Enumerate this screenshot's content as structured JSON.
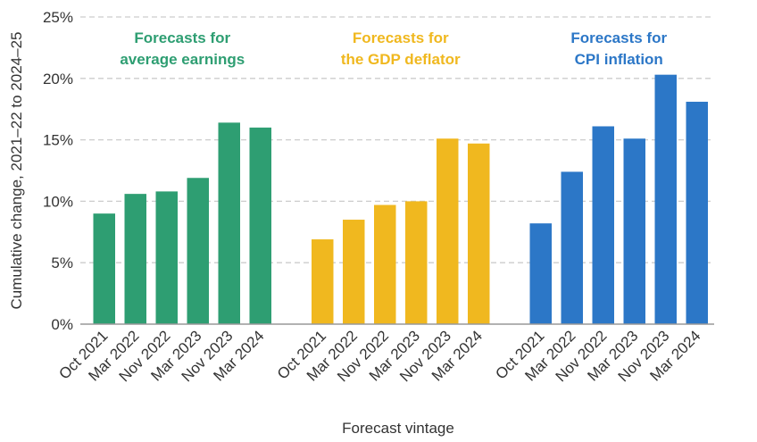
{
  "chart_data": {
    "type": "bar",
    "xlabel": "Forecast vintage",
    "ylabel": "Cumulative change, 2021–22 to 2024–25",
    "ylim": [
      0,
      25
    ],
    "yticks": [
      "0%",
      "5%",
      "10%",
      "15%",
      "20%",
      "25%"
    ],
    "ytick_values": [
      0,
      5,
      10,
      15,
      20,
      25
    ],
    "grid": true,
    "categories": [
      "Oct 2021",
      "Mar 2022",
      "Nov 2022",
      "Mar 2023",
      "Nov 2023",
      "Mar 2024"
    ],
    "series": [
      {
        "label_lines": [
          "Forecasts for",
          "average earnings"
        ],
        "color": "#2e9e72",
        "values": [
          9.0,
          10.6,
          10.8,
          11.9,
          16.4,
          16.0
        ]
      },
      {
        "label_lines": [
          "Forecasts for",
          "the GDP deflator"
        ],
        "color": "#f0b81f",
        "values": [
          6.9,
          8.5,
          9.7,
          10.0,
          15.1,
          14.7
        ]
      },
      {
        "label_lines": [
          "Forecasts for",
          "CPI inflation"
        ],
        "color": "#2c77c7",
        "values": [
          8.2,
          12.4,
          16.1,
          15.1,
          20.3,
          18.1
        ]
      }
    ]
  }
}
